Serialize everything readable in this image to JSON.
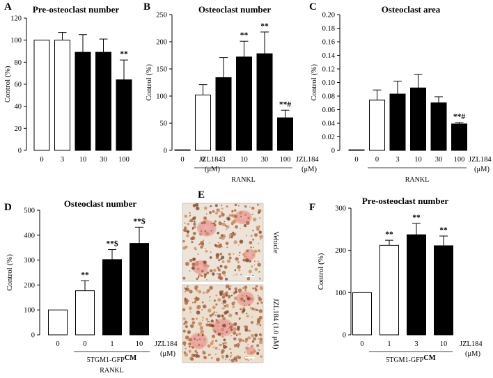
{
  "chart_data": [
    {
      "panel": "A",
      "type": "bar",
      "title": "Pre-osteoclast number",
      "ylabel": "Control (%)",
      "ylim": [
        0,
        120
      ],
      "yticks": [
        "0",
        "20",
        "40",
        "60",
        "80",
        "100",
        "120"
      ],
      "categories": [
        "0",
        "3",
        "10",
        "30",
        "100"
      ],
      "values": [
        100,
        100,
        89,
        89,
        64
      ],
      "errors": [
        0,
        7,
        16,
        12,
        18
      ],
      "fill": [
        "white",
        "white",
        "black",
        "black",
        "black"
      ],
      "annotations": [
        "",
        "",
        "",
        "",
        "**"
      ],
      "xunit_label": "JZL184",
      "xunit_sub": "(μM)",
      "group_label": ""
    },
    {
      "panel": "B",
      "type": "bar",
      "title": "Osteoclast number",
      "ylabel": "Control (%)",
      "ylim": [
        0,
        250
      ],
      "yticks": [
        "0",
        "50",
        "100",
        "150",
        "200",
        "250"
      ],
      "categories": [
        "0",
        "0",
        "3",
        "10",
        "30",
        "100"
      ],
      "values": [
        1,
        102,
        134,
        172,
        178,
        60
      ],
      "errors": [
        0,
        19,
        37,
        29,
        40,
        14
      ],
      "fill": [
        "white",
        "white",
        "black",
        "black",
        "black",
        "black"
      ],
      "annotations": [
        "",
        "",
        "",
        "**",
        "**",
        "**#"
      ],
      "xunit_label": "JZL184",
      "xunit_sub": "(μM)",
      "group_label": "RANKL"
    },
    {
      "panel": "C",
      "type": "bar",
      "title": "Osteoclast area",
      "ylabel": "Control (%)",
      "ylim": [
        0,
        0.2
      ],
      "yticks": [
        "0",
        "0.02",
        "0.04",
        "0.06",
        "0.08",
        "0.10",
        "0.12",
        "0.14",
        "0.16",
        "0.18",
        "0.20"
      ],
      "categories": [
        "0",
        "0",
        "3",
        "10",
        "30",
        "100"
      ],
      "values": [
        0,
        0.074,
        0.083,
        0.092,
        0.07,
        0.039
      ],
      "errors": [
        0,
        0.015,
        0.019,
        0.02,
        0.009,
        0.002
      ],
      "fill": [
        "white",
        "white",
        "black",
        "black",
        "black",
        "black"
      ],
      "annotations": [
        "",
        "",
        "",
        "",
        "",
        "**#"
      ],
      "xunit_label": "JZL184",
      "xunit_sub": "(μM)",
      "group_label": "RANKL"
    },
    {
      "panel": "D",
      "type": "bar",
      "title": "Osteoclast number",
      "ylabel": "Control (%)",
      "ylim": [
        0,
        500
      ],
      "yticks": [
        "0",
        "100",
        "200",
        "300",
        "400",
        "500"
      ],
      "categories": [
        "0",
        "0",
        "1",
        "10"
      ],
      "values": [
        100,
        177,
        302,
        367
      ],
      "errors": [
        0,
        40,
        40,
        65
      ],
      "fill": [
        "white",
        "white",
        "black",
        "black"
      ],
      "annotations": [
        "",
        "**",
        "**$",
        "**$"
      ],
      "xunit_label": "JZL184",
      "xunit_sub": "(μM)",
      "group_label": "5TGM1-GFP",
      "group_label_sup": "CM",
      "group_label2": "RANKL"
    },
    {
      "panel": "F",
      "type": "bar",
      "title": "Pre-osteoclast number",
      "ylabel": "Control (%)",
      "ylim": [
        0,
        300
      ],
      "yticks": [
        "0",
        "100",
        "200",
        "300"
      ],
      "categories": [
        "0",
        "1",
        "3",
        "10"
      ],
      "values": [
        100,
        212,
        237,
        211
      ],
      "errors": [
        0,
        12,
        27,
        23
      ],
      "fill": [
        "white",
        "white",
        "black",
        "black"
      ],
      "annotations": [
        "",
        "**",
        "**",
        "**"
      ],
      "xunit_label": "JZL184",
      "xunit_sub": "(μM)",
      "group_label": "5TGM1-GFP",
      "group_label_sup": "CM"
    }
  ],
  "images": {
    "panel": "E",
    "top_label": "Vehicle",
    "bottom_label": "JZL184 (1.0 μM)"
  }
}
